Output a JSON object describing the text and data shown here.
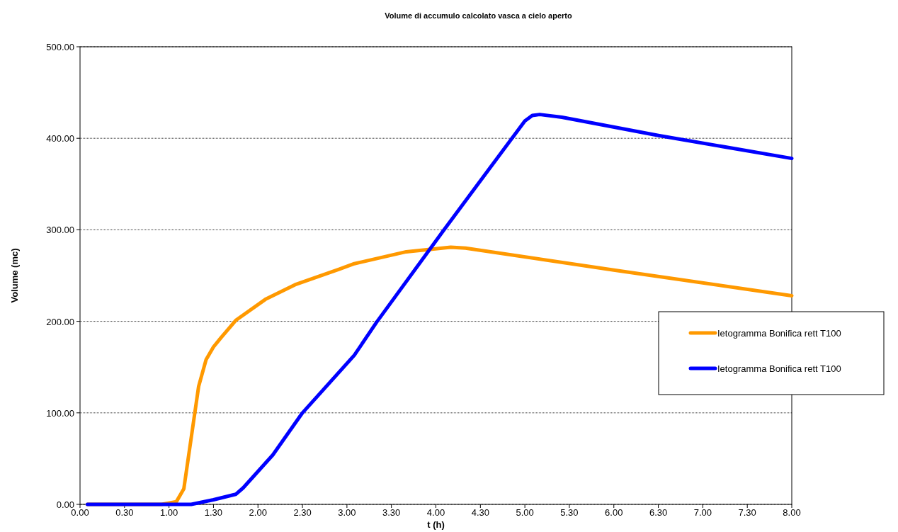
{
  "chart_data": {
    "type": "line",
    "title": "Volume di accumulo calcolato vasca a cielo aperto",
    "xlabel": "t (h)",
    "ylabel": "Volume (mc)",
    "xlim": [
      "2000-01-01T00:00",
      "2000-01-01T08:00"
    ],
    "xticks": [
      {
        "value": "2000-01-01T00:00",
        "label": "0.00"
      },
      {
        "value": "2000-01-01T00:30",
        "label": "0.30"
      },
      {
        "value": "2000-01-01T01:00",
        "label": "1.00"
      },
      {
        "value": "2000-01-01T01:30",
        "label": "1.30"
      },
      {
        "value": "2000-01-01T02:00",
        "label": "2.00"
      },
      {
        "value": "2000-01-01T02:30",
        "label": "2.30"
      },
      {
        "value": "2000-01-01T03:00",
        "label": "3.00"
      },
      {
        "value": "2000-01-01T03:30",
        "label": "3.30"
      },
      {
        "value": "2000-01-01T04:00",
        "label": "4.00"
      },
      {
        "value": "2000-01-01T04:30",
        "label": "4.30"
      },
      {
        "value": "2000-01-01T05:00",
        "label": "5.00"
      },
      {
        "value": "2000-01-01T05:30",
        "label": "5.30"
      },
      {
        "value": "2000-01-01T06:00",
        "label": "6.00"
      },
      {
        "value": "2000-01-01T06:30",
        "label": "6.30"
      },
      {
        "value": "2000-01-01T07:00",
        "label": "7.00"
      },
      {
        "value": "2000-01-01T07:30",
        "label": "7.30"
      },
      {
        "value": "2000-01-01T08:00",
        "label": "8.00"
      }
    ],
    "ylim": [
      0,
      500
    ],
    "yticks": [
      {
        "value": 0,
        "label": "0.00"
      },
      {
        "value": 100,
        "label": "100.00"
      },
      {
        "value": 200,
        "label": "200.00"
      },
      {
        "value": 300,
        "label": "300.00"
      },
      {
        "value": 400,
        "label": "400.00"
      },
      {
        "value": 500,
        "label": "500.00"
      }
    ],
    "grid": "y",
    "legend": "right",
    "marker": "none",
    "line_style": "solid",
    "series": [
      {
        "name": "Ietogramma Bonifica rett T100",
        "color": "#ff9900",
        "x": [
          "2000-01-01T00:05",
          "2000-01-01T00:55",
          "2000-01-01T01:05",
          "2000-01-01T01:10",
          "2000-01-01T01:20",
          "2000-01-01T01:25",
          "2000-01-01T01:30",
          "2000-01-01T01:35",
          "2000-01-01T01:45",
          "2000-01-01T02:05",
          "2000-01-01T02:25",
          "2000-01-01T02:55",
          "2000-01-01T03:05",
          "2000-01-01T03:40",
          "2000-01-01T04:10",
          "2000-01-01T04:20",
          "2000-01-01T06:00",
          "2000-01-01T08:00"
        ],
        "values": [
          0,
          0,
          3,
          17,
          129,
          158,
          172,
          182,
          201,
          224,
          240,
          257,
          263,
          276,
          281,
          280,
          256,
          228
        ]
      },
      {
        "name": "Ietogramma Bonifica rett T100",
        "color": "#0000ff",
        "x": [
          "2000-01-01T00:05",
          "2000-01-01T01:15",
          "2000-01-01T01:30",
          "2000-01-01T01:45",
          "2000-01-01T01:50",
          "2000-01-01T02:10",
          "2000-01-01T02:30",
          "2000-01-01T03:05",
          "2000-01-01T03:20",
          "2000-01-01T04:05",
          "2000-01-01T05:00",
          "2000-01-01T05:05",
          "2000-01-01T05:10",
          "2000-01-01T05:25",
          "2000-01-01T06:30",
          "2000-01-01T08:00"
        ],
        "values": [
          0,
          0,
          5,
          11,
          18,
          54,
          100,
          163,
          199,
          299,
          419,
          425,
          426,
          423,
          403,
          378
        ]
      }
    ]
  }
}
